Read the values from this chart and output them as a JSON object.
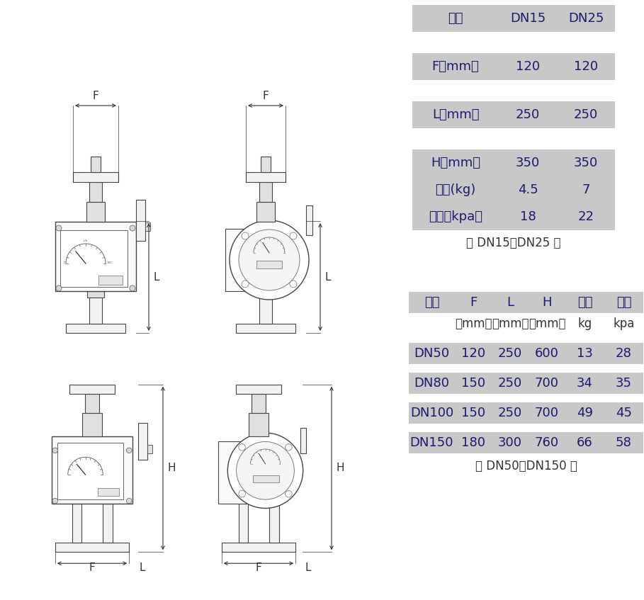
{
  "bg_color": "#ffffff",
  "cell_bg": "#c8c8c8",
  "text_color": "#1a1a6e",
  "font_size_header": 13,
  "font_size_data": 13,
  "font_size_caption": 12,
  "table1_header": [
    "口径",
    "DN15",
    "DN25"
  ],
  "table1_rows": [
    [
      "F（mm）",
      "120",
      "120"
    ],
    [
      "L（mm）",
      "250",
      "250"
    ],
    [
      "H（mm）",
      "350",
      "350"
    ],
    [
      "重量(kg)",
      "4.5",
      "7"
    ],
    [
      "压损（kpa）",
      "18",
      "22"
    ]
  ],
  "table1_caption": "（ DN15～DN25 ）",
  "table2_header": [
    "口径",
    "F",
    "L",
    "H",
    "重量",
    "压损"
  ],
  "table2_subheader": [
    "",
    "（mm）",
    "（mm）",
    "（mm）",
    "kg",
    "kpa"
  ],
  "table2_rows": [
    [
      "DN50",
      "120",
      "250",
      "600",
      "13",
      "28"
    ],
    [
      "DN80",
      "150",
      "250",
      "700",
      "34",
      "35"
    ],
    [
      "DN100",
      "150",
      "250",
      "700",
      "49",
      "45"
    ],
    [
      "DN150",
      "180",
      "300",
      "760",
      "66",
      "58"
    ]
  ],
  "table2_caption": "（ DN50～DN150 ）",
  "dim_label_F_top": "F",
  "dim_label_L_top": "L",
  "dim_label_F_bot": "F",
  "dim_label_L_bot": "L",
  "dim_label_H_bot": "H"
}
